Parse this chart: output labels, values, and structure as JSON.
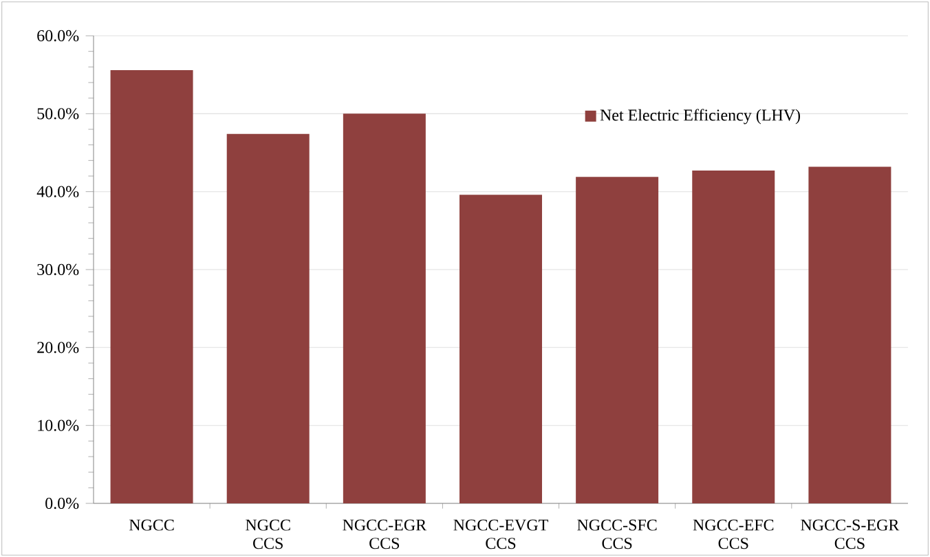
{
  "chart_data": {
    "type": "bar",
    "categories": [
      "NGCC",
      "NGCC CCS",
      "NGCC-EGR CCS",
      "NGCC-EVGT CCS",
      "NGCC-SFC CCS",
      "NGCC-EFC CCS",
      "NGCC-S-EGR CCS"
    ],
    "series": [
      {
        "name": "Net Electric Efficiency (LHV)",
        "color": "#8f403e",
        "values": [
          55.6,
          47.4,
          50.0,
          39.6,
          41.9,
          42.7,
          43.2
        ]
      }
    ],
    "ylim": [
      0,
      60
    ],
    "yticks": [
      {
        "value": 0,
        "label": "0.0%"
      },
      {
        "value": 10,
        "label": "10.0%"
      },
      {
        "value": 20,
        "label": "20.0%"
      },
      {
        "value": 30,
        "label": "30.0%"
      },
      {
        "value": 40,
        "label": "40.0%"
      },
      {
        "value": 50,
        "label": "50.0%"
      },
      {
        "value": 60,
        "label": "60.0%"
      }
    ],
    "grid": "y",
    "legend": "top right"
  }
}
